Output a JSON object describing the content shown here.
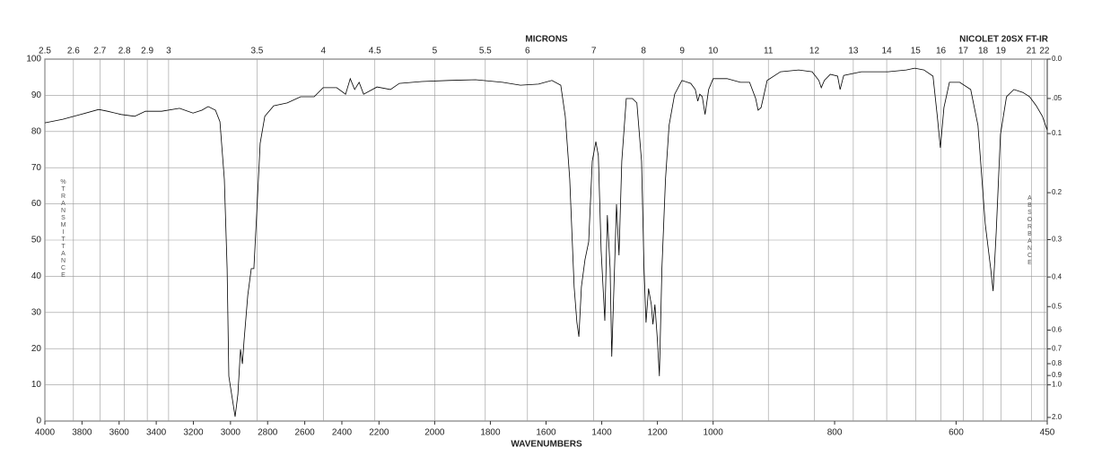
{
  "chart_data": {
    "type": "line",
    "x2label": "MICRONS",
    "xlabel": "WAVENUMBERS",
    "instrument": "NICOLET 20SX FT-IR",
    "ylabel": "%TRANSMITTANCE",
    "y2label": "ABSORBANCE",
    "color": "#000000",
    "grid": true,
    "xscale_breaks": [
      2200,
      1000
    ],
    "xlim": [
      4000,
      450
    ],
    "xticks": [
      4000,
      3800,
      3600,
      3400,
      3200,
      3000,
      2800,
      2600,
      2400,
      2200,
      2000,
      1800,
      1600,
      1400,
      1200,
      1000,
      800,
      600,
      450
    ],
    "x2ticks": [
      2.5,
      2.6,
      2.7,
      2.8,
      2.9,
      3,
      3.5,
      4,
      4.5,
      5,
      5.5,
      6,
      7,
      8,
      9,
      10,
      11,
      12,
      13,
      14,
      15,
      16,
      17,
      18,
      19,
      21,
      22
    ],
    "ylim": [
      0,
      100
    ],
    "yticks": [
      0,
      10,
      20,
      30,
      40,
      50,
      60,
      70,
      80,
      90,
      100
    ],
    "y2scale": "absorbance",
    "y2ticks": [
      {
        "value": 0,
        "label": "0.0"
      },
      {
        "value": 0.05,
        "label": ".05"
      },
      0.1,
      0.2,
      0.3,
      0.4,
      0.5,
      0.6,
      0.7,
      0.8,
      0.9,
      {
        "value": 1,
        "label": "1.0"
      },
      {
        "value": 2,
        "label": "2.0"
      }
    ],
    "x": [
      4000,
      3903,
      3807,
      3710,
      3662,
      3589,
      3516,
      3458,
      3371,
      3275,
      3202,
      3154,
      3120,
      3081,
      3057,
      3033,
      3018,
      3009,
      2994,
      2975,
      2960,
      2946,
      2936,
      2927,
      2907,
      2888,
      2874,
      2859,
      2840,
      2815,
      2767,
      2694,
      2622,
      2549,
      2501,
      2428,
      2380,
      2355,
      2331,
      2307,
      2283,
      2211,
      2159,
      2127,
      2046,
      1950,
      1853,
      1756,
      1692,
      1627,
      1579,
      1547,
      1531,
      1515,
      1499,
      1489,
      1482,
      1473,
      1460,
      1447,
      1434,
      1421,
      1412,
      1402,
      1389,
      1380,
      1370,
      1364,
      1354,
      1347,
      1338,
      1328,
      1312,
      1290,
      1274,
      1257,
      1248,
      1241,
      1232,
      1222,
      1216,
      1209,
      1200,
      1193,
      1184,
      1171,
      1158,
      1138,
      1112,
      1080,
      1064,
      1055,
      1048,
      1039,
      1029,
      1016,
      1000,
      977,
      955,
      940,
      930,
      926,
      921,
      911,
      889,
      859,
      837,
      826,
      822,
      817,
      807,
      795,
      791,
      785,
      756,
      712,
      682,
      668,
      653,
      638,
      631,
      626,
      620,
      611,
      594,
      576,
      564,
      552,
      543,
      539,
      534,
      527,
      517,
      505,
      490,
      479,
      468,
      458,
      450
    ],
    "values": [
      82.4,
      83.4,
      84.7,
      86.1,
      85.6,
      84.7,
      84.2,
      85.6,
      85.6,
      86.4,
      85.1,
      85.9,
      86.9,
      85.9,
      82.7,
      66.8,
      42.1,
      12.4,
      7.4,
      1.2,
      7.4,
      19.8,
      15.8,
      22.3,
      34.7,
      42.1,
      42.1,
      56.9,
      76.7,
      84.2,
      87.1,
      87.9,
      89.6,
      89.6,
      92.1,
      92.1,
      90.3,
      94.6,
      91.6,
      93.6,
      90.3,
      92.3,
      91.6,
      93.3,
      93.8,
      94.1,
      94.3,
      93.6,
      92.8,
      93.1,
      94.1,
      92.8,
      84.2,
      66.8,
      37.1,
      27.2,
      23.3,
      37.1,
      44.6,
      49.5,
      71.8,
      77.2,
      73.3,
      47.0,
      27.7,
      56.9,
      42.1,
      17.8,
      42.1,
      59.9,
      45.8,
      71.8,
      89.1,
      89.1,
      87.9,
      71.8,
      42.1,
      27.2,
      36.6,
      32.2,
      26.7,
      32.2,
      22.3,
      12.4,
      42.1,
      66.8,
      81.7,
      90.3,
      94.1,
      93.3,
      91.6,
      88.4,
      90.3,
      89.6,
      84.7,
      91.6,
      94.6,
      94.6,
      93.6,
      93.6,
      89.1,
      85.9,
      86.6,
      94.1,
      96.5,
      97.0,
      96.5,
      94.1,
      92.1,
      94.1,
      95.8,
      95.3,
      91.6,
      95.5,
      96.5,
      96.5,
      97.0,
      97.5,
      97.0,
      95.3,
      84.2,
      75.5,
      86.6,
      93.6,
      93.6,
      91.6,
      81.7,
      54.5,
      42.1,
      35.9,
      52.0,
      79.2,
      89.6,
      91.6,
      90.8,
      89.6,
      87.1,
      84.2,
      80.4
    ]
  }
}
